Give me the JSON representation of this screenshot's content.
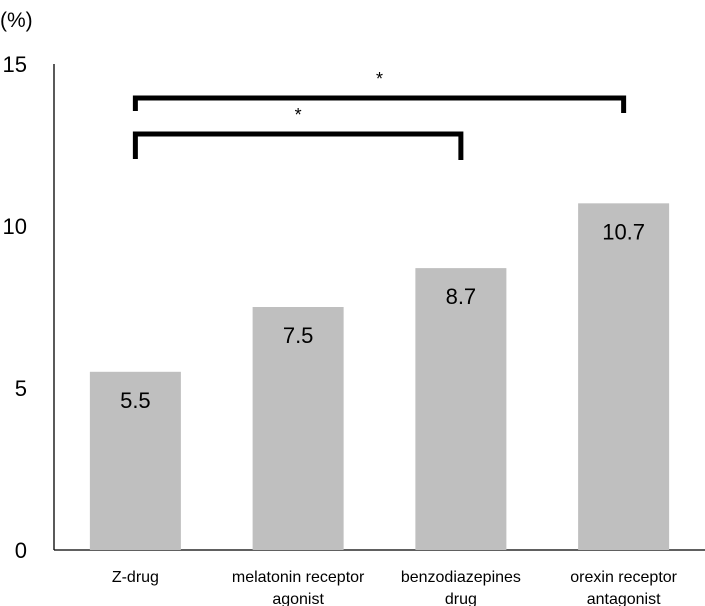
{
  "chart_data": {
    "type": "bar",
    "unit_label": "(%)",
    "title": "",
    "xlabel": "",
    "ylabel": "",
    "ylim": [
      0,
      15
    ],
    "yticks": [
      0,
      5,
      10,
      15
    ],
    "grid": false,
    "legend": "none",
    "categories": [
      [
        "Z-drug"
      ],
      [
        "melatonin receptor",
        "agonist"
      ],
      [
        "benzodiazepines",
        "drug"
      ],
      [
        "orexin receptor",
        "antagonist"
      ]
    ],
    "values": [
      5.5,
      7.5,
      8.7,
      10.7
    ],
    "value_labels": [
      "5.5",
      "7.5",
      "8.7",
      "10.7"
    ],
    "significance": [
      {
        "from": 0,
        "to": 2,
        "label": "*"
      },
      {
        "from": 0,
        "to": 3,
        "label": "*"
      }
    ],
    "colors": {
      "bar": "#bfbfbf",
      "axis": "#000000",
      "text": "#000000"
    }
  }
}
